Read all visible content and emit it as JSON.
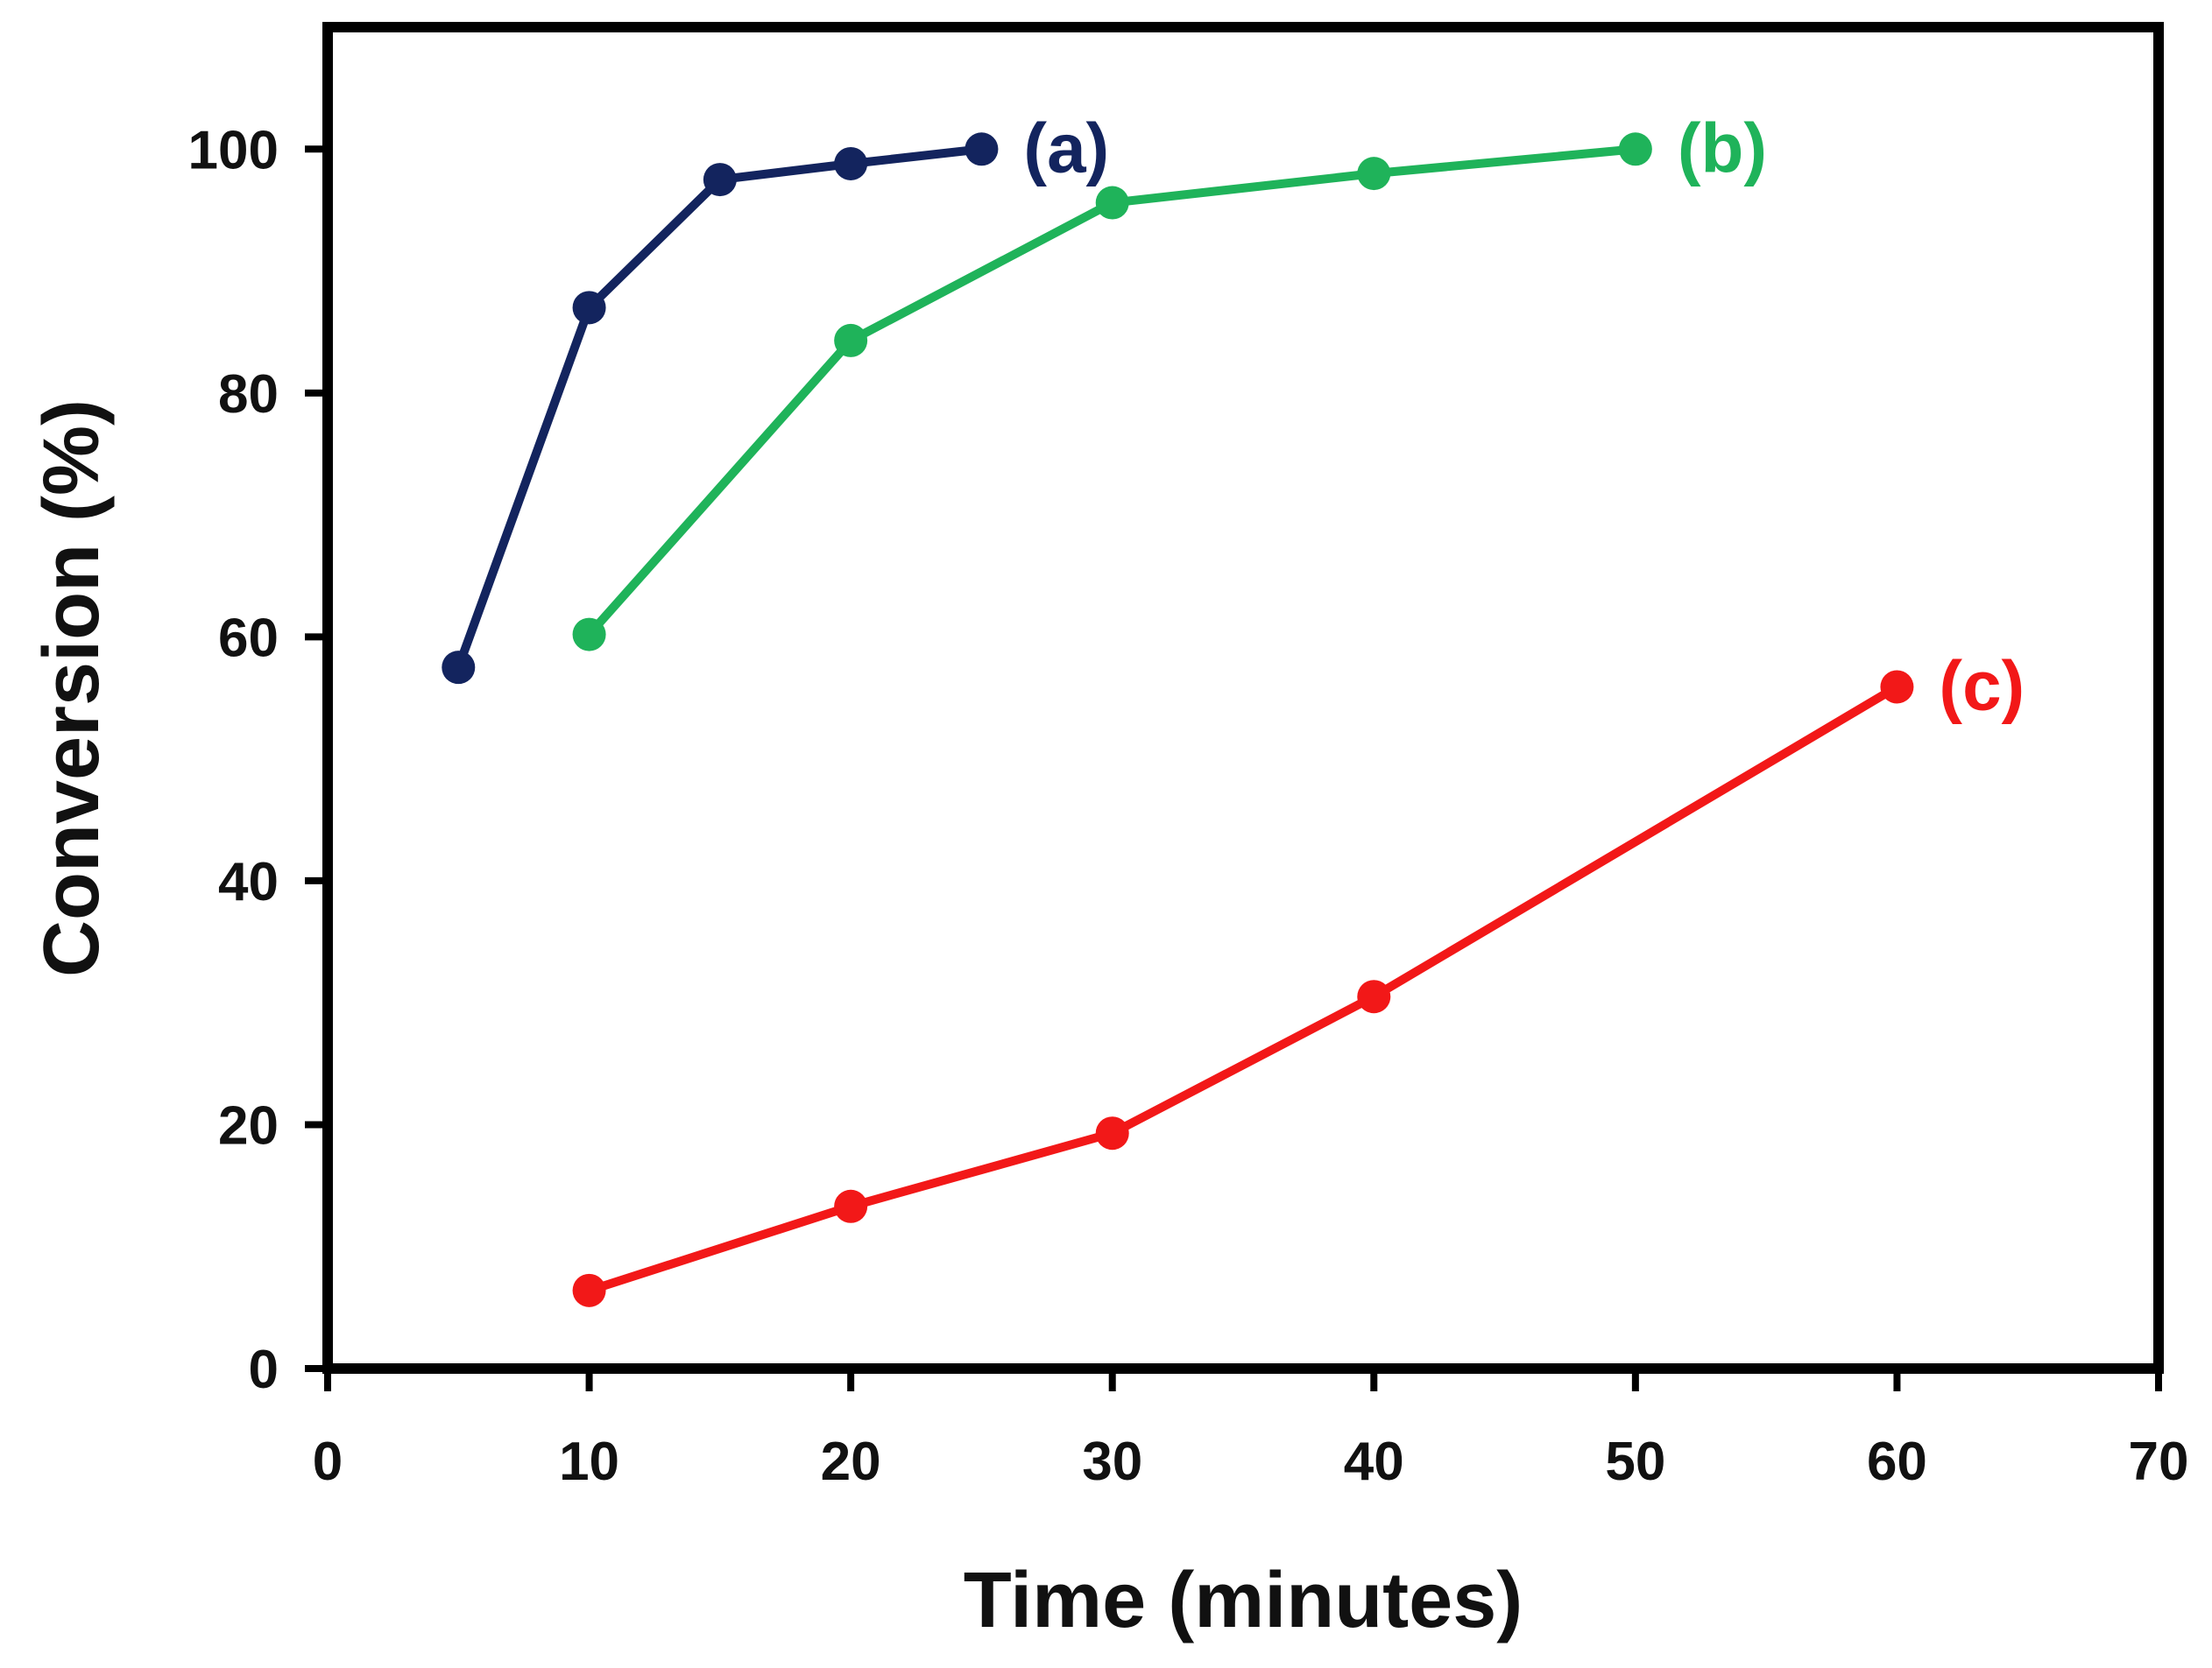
{
  "chart_data": {
    "type": "line",
    "title": "",
    "xlabel": "Time (minutes)",
    "ylabel": "Conversion (%)",
    "xlim": [
      0,
      70
    ],
    "ylim": [
      0,
      110
    ],
    "xticks": [
      0,
      10,
      20,
      30,
      40,
      50,
      60,
      70
    ],
    "yticks": [
      0,
      20,
      40,
      60,
      80,
      100
    ],
    "grid": false,
    "series": [
      {
        "name": "(a)",
        "color": "#13245e",
        "x": [
          5,
          10,
          15,
          20,
          25
        ],
        "y": [
          57.5,
          87,
          97.5,
          98.8,
          100
        ]
      },
      {
        "name": "(b)",
        "color": "#1fb35a",
        "x": [
          10,
          20,
          30,
          40,
          50
        ],
        "y": [
          60.2,
          84.3,
          95.6,
          98,
          100
        ]
      },
      {
        "name": "(c)",
        "color": "#f21818",
        "x": [
          10,
          20,
          30,
          40,
          60
        ],
        "y": [
          6.4,
          13.3,
          19.3,
          30.5,
          55.9
        ]
      }
    ]
  }
}
